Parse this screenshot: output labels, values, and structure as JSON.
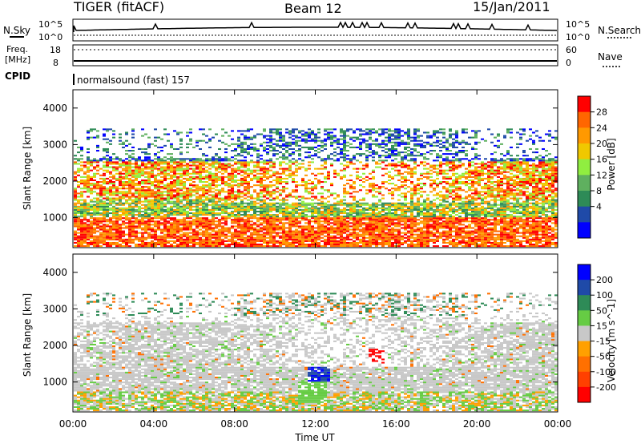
{
  "header": {
    "radar": "TIGER (fitACF)",
    "beam": "Beam 12",
    "date": "15/Jan/2011"
  },
  "top_panel": {
    "left_label_1": "N.Sky",
    "right_label_1": "N.Search",
    "nsky_ticks": [
      "10^5",
      "10^0"
    ],
    "nsearch_ticks": [
      "10^5",
      "10^0"
    ],
    "freq_label_1": "Freq.",
    "freq_label_2": "[MHz]",
    "freq_ticks": [
      "18",
      "8"
    ],
    "nave_label": "Nave",
    "nave_ticks": [
      "60",
      "0"
    ],
    "cpid_label": "CPID",
    "cpid_text": "normalsound (fast) 157"
  },
  "colors": {
    "power": [
      "#0000ff",
      "#1f4aa8",
      "#2e8b57",
      "#5fb05f",
      "#90ee40",
      "#f0c800",
      "#ff9900",
      "#ff6600",
      "#ff0000"
    ],
    "velocity": [
      "#0000ff",
      "#1f4aa8",
      "#2e8b57",
      "#66cc44",
      "#c8c8c8",
      "#ffa000",
      "#ff7000",
      "#ff4000",
      "#ff0000"
    ]
  },
  "chart_data": [
    {
      "type": "heatmap",
      "title": "Power",
      "xlabel": "",
      "ylabel": "Slant Range [km]",
      "colorbar_label": "Power [dB]",
      "xlim": [
        "00:00",
        "00:00"
      ],
      "ylim": [
        180,
        4500
      ],
      "x_ticks": [
        "00:00",
        "04:00",
        "08:00",
        "12:00",
        "16:00",
        "20:00",
        "00:00"
      ],
      "y_ticks": [
        "1000",
        "2000",
        "3000",
        "4000"
      ],
      "colorbar_ticks": [
        "28",
        "24",
        "20",
        "16",
        "12",
        "8",
        "4"
      ]
    },
    {
      "type": "heatmap",
      "title": "Velocity",
      "xlabel": "Time UT",
      "ylabel": "Slant Range [km]",
      "colorbar_label": "Velocity [m s^-1]",
      "xlim": [
        "00:00",
        "00:00"
      ],
      "ylim": [
        180,
        4500
      ],
      "x_ticks": [
        "00:00",
        "04:00",
        "08:00",
        "12:00",
        "16:00",
        "20:00",
        "00:00"
      ],
      "y_ticks": [
        "1000",
        "2000",
        "3000",
        "4000"
      ],
      "colorbar_ticks": [
        "200",
        "100",
        "50",
        "15",
        "-15",
        "-50",
        "-100",
        "-200"
      ]
    }
  ]
}
